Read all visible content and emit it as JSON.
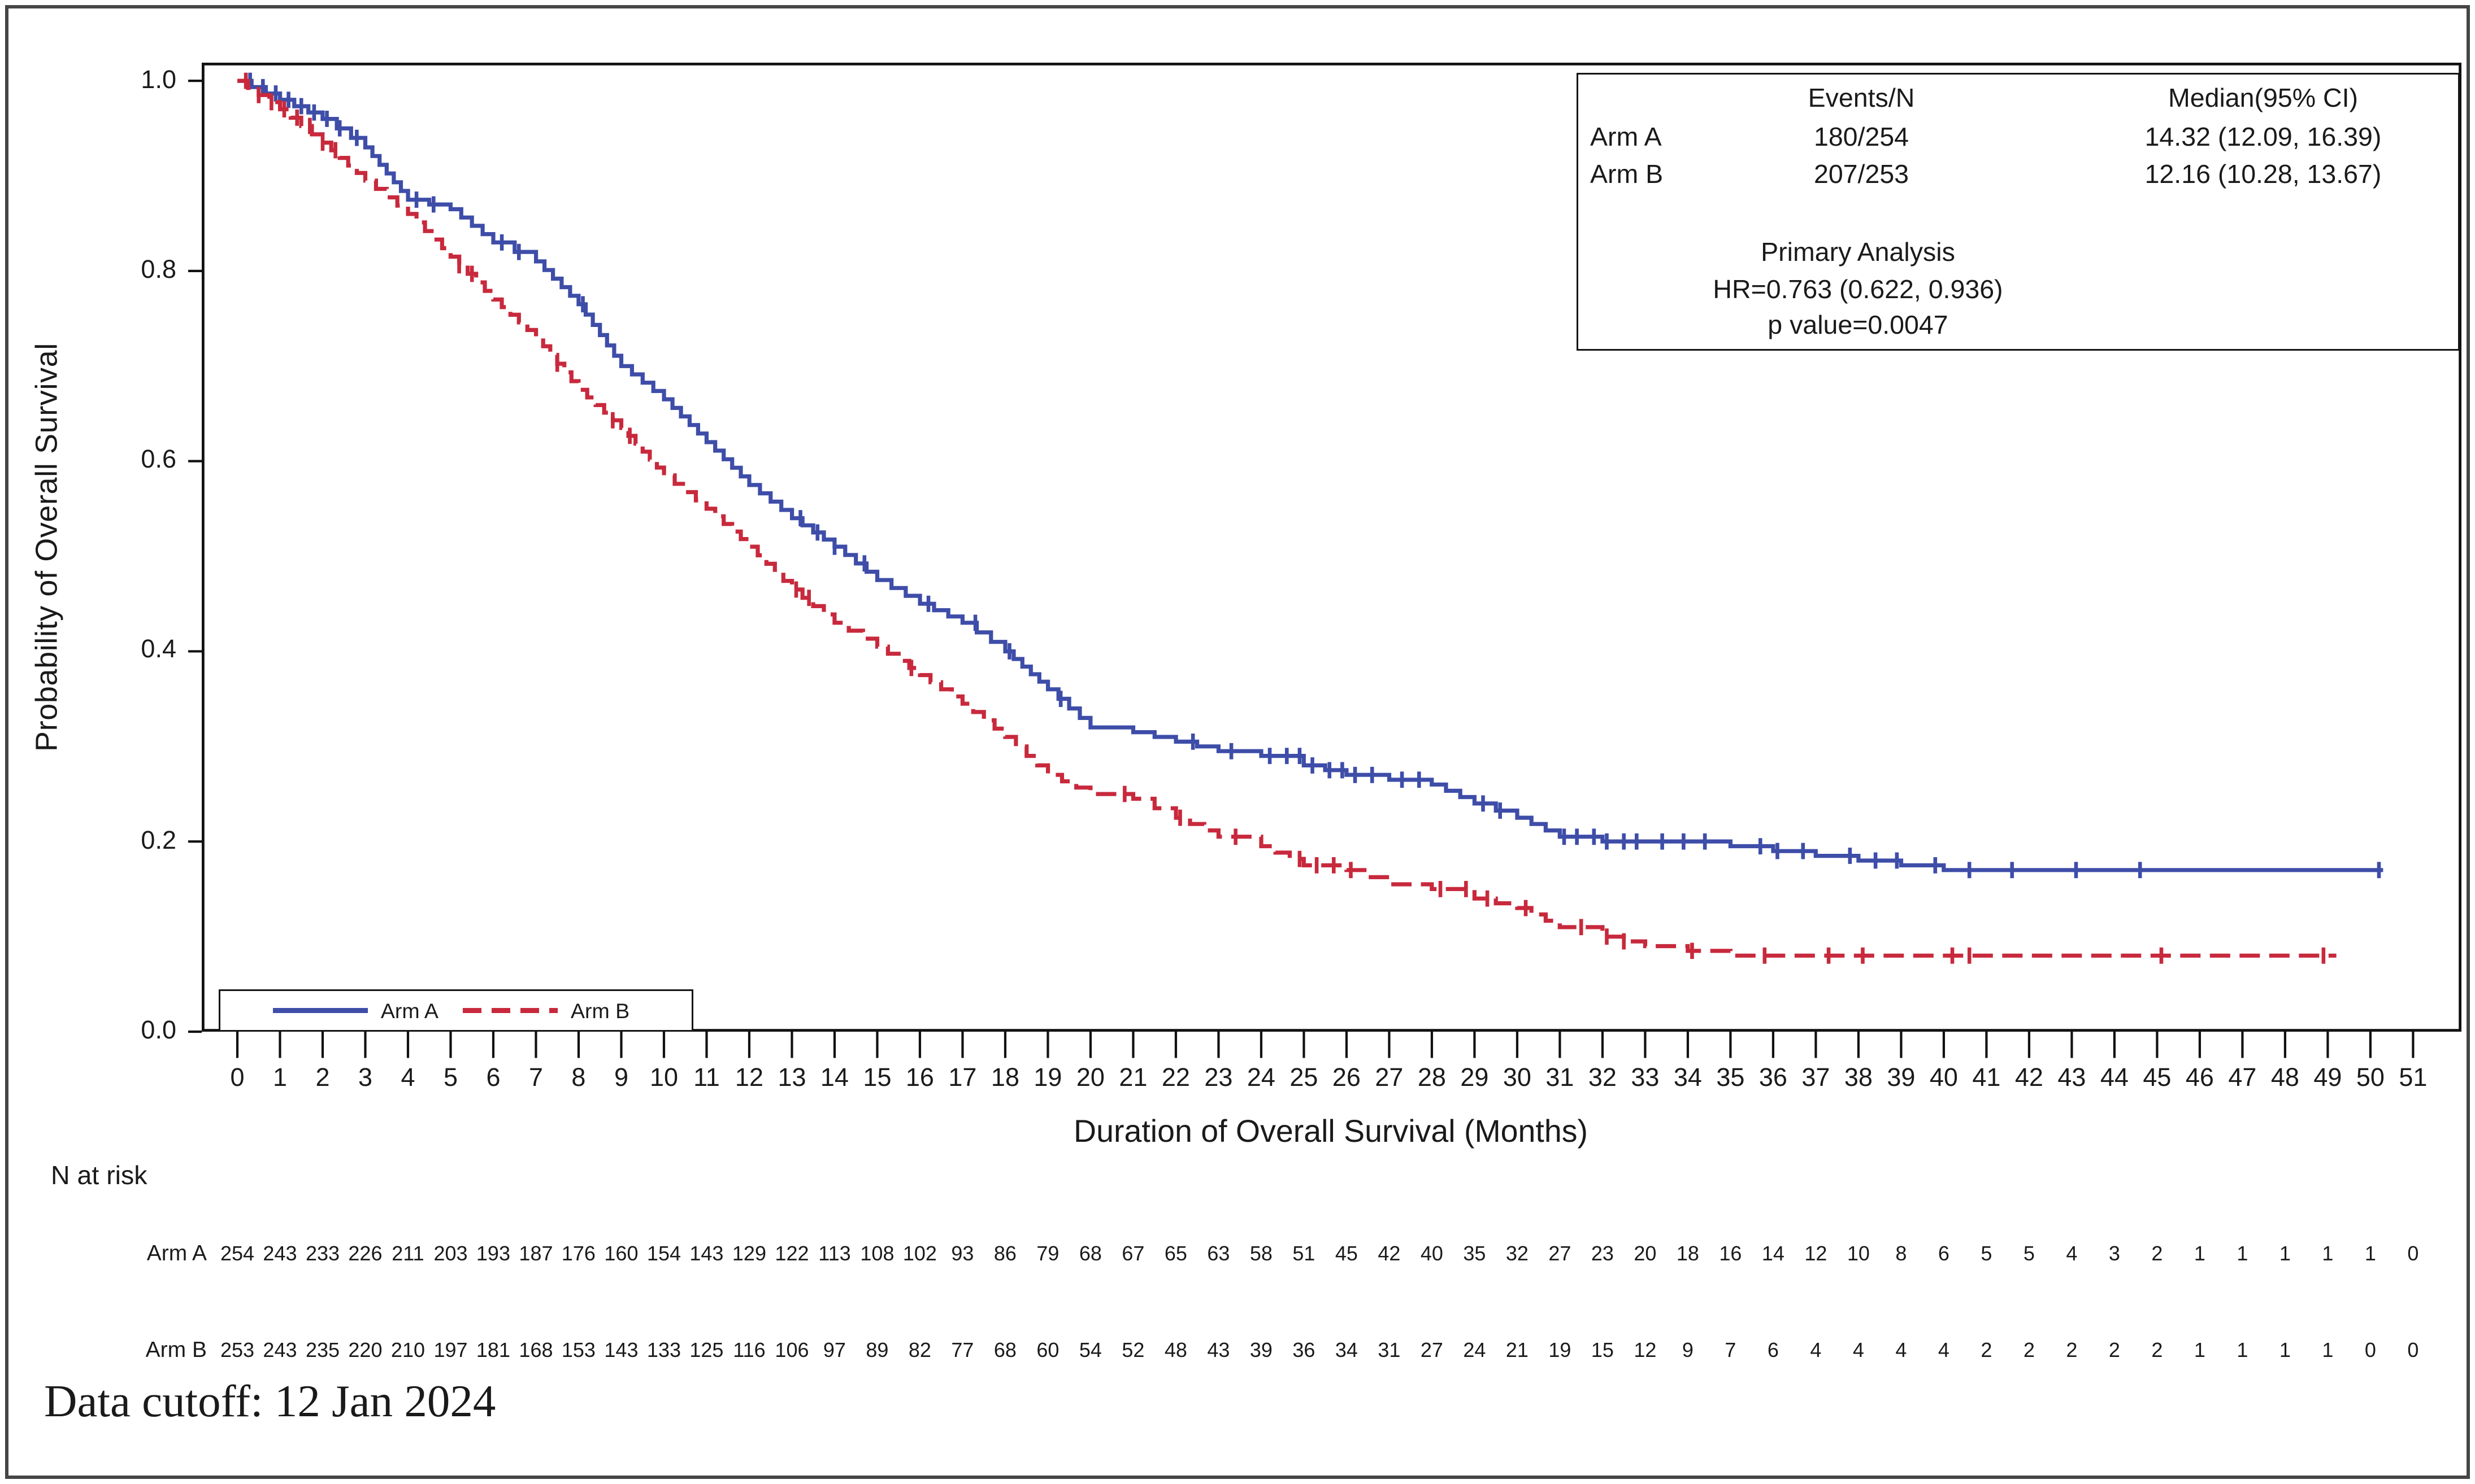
{
  "figure": {
    "y_axis_title": "Probability of Overall Survival",
    "x_axis_title": "Duration of Overall Survival (Months)",
    "n_at_risk_title": "N at risk",
    "footnote": "Data cutoff: 12 Jan 2024"
  },
  "stats_box": {
    "col_headers": [
      "Events/N",
      "Median(95% CI)"
    ],
    "rows": [
      {
        "label": "Arm A",
        "events_n": "180/254",
        "median_ci": "14.32 (12.09, 16.39)"
      },
      {
        "label": "Arm B",
        "events_n": "207/253",
        "median_ci": "12.16 (10.28, 13.67)"
      }
    ],
    "analysis_title": "Primary Analysis",
    "hr_line": "HR=0.763 (0.622, 0.936)",
    "p_line": "p value=0.0047"
  },
  "legend": {
    "items": [
      {
        "label": "Arm A",
        "color": "#3e4da8",
        "line_style": "solid"
      },
      {
        "label": "Arm B",
        "color": "#c8293c",
        "line_style": "dashed"
      }
    ]
  },
  "axes": {
    "y_ticks": [
      "1.0",
      "0.8",
      "0.6",
      "0.4",
      "0.2",
      "0.0"
    ],
    "x_ticks": [
      "0",
      "1",
      "2",
      "3",
      "4",
      "5",
      "6",
      "7",
      "8",
      "9",
      "10",
      "11",
      "12",
      "13",
      "14",
      "15",
      "16",
      "17",
      "18",
      "19",
      "20",
      "21",
      "22",
      "23",
      "24",
      "25",
      "26",
      "27",
      "28",
      "29",
      "30",
      "31",
      "32",
      "33",
      "34",
      "35",
      "36",
      "37",
      "38",
      "39",
      "40",
      "41",
      "42",
      "43",
      "44",
      "45",
      "46",
      "47",
      "48",
      "49",
      "50",
      "51"
    ]
  },
  "n_at_risk": {
    "rows": [
      {
        "label": "Arm A",
        "counts": [
          254,
          243,
          233,
          226,
          211,
          203,
          193,
          187,
          176,
          160,
          154,
          143,
          129,
          122,
          113,
          108,
          102,
          93,
          86,
          79,
          68,
          67,
          65,
          63,
          58,
          51,
          45,
          42,
          40,
          35,
          32,
          27,
          23,
          20,
          18,
          16,
          14,
          12,
          10,
          8,
          6,
          5,
          5,
          4,
          3,
          2,
          1,
          1,
          1,
          1,
          1,
          0
        ]
      },
      {
        "label": "Arm B",
        "counts": [
          253,
          243,
          235,
          220,
          210,
          197,
          181,
          168,
          153,
          143,
          133,
          125,
          116,
          106,
          97,
          89,
          82,
          77,
          68,
          60,
          54,
          52,
          48,
          43,
          39,
          36,
          34,
          31,
          27,
          24,
          21,
          19,
          15,
          12,
          9,
          7,
          6,
          4,
          4,
          4,
          4,
          2,
          2,
          2,
          2,
          2,
          1,
          1,
          1,
          1,
          0,
          0
        ]
      }
    ]
  },
  "chart_data": {
    "type": "line",
    "subtype": "kaplan-meier-step",
    "title": "",
    "xlabel": "Duration of Overall Survival (Months)",
    "ylabel": "Probability of Overall Survival",
    "xlim": [
      0,
      51
    ],
    "ylim": [
      0.0,
      1.0
    ],
    "grid": false,
    "legend_position": "inside-bottom-left",
    "x_months": [
      0,
      1,
      2,
      3,
      4,
      5,
      6,
      7,
      8,
      9,
      10,
      11,
      12,
      13,
      14,
      15,
      16,
      17,
      18,
      19,
      20,
      21,
      22,
      23,
      24,
      25,
      26,
      27,
      28,
      29,
      30,
      31,
      32,
      33,
      34,
      35,
      36,
      37,
      38,
      39,
      40,
      41,
      42,
      43,
      44,
      45,
      46,
      47,
      48,
      49,
      50,
      51
    ],
    "series": [
      {
        "name": "Arm A",
        "color": "#3e4da8",
        "line_style": "solid",
        "end_month": 50.3,
        "survival_by_month": [
          1.0,
          0.98,
          0.96,
          0.93,
          0.875,
          0.865,
          0.83,
          0.81,
          0.765,
          0.7,
          0.665,
          0.62,
          0.575,
          0.54,
          0.51,
          0.475,
          0.45,
          0.43,
          0.4,
          0.36,
          0.32,
          0.315,
          0.305,
          0.295,
          0.29,
          0.28,
          0.27,
          0.265,
          0.26,
          0.24,
          0.225,
          0.205,
          0.2,
          0.2,
          0.2,
          0.195,
          0.19,
          0.185,
          0.18,
          0.175,
          0.17,
          0.17,
          0.17,
          0.17,
          0.17,
          0.17,
          0.17,
          0.17,
          0.17,
          0.17,
          0.17,
          0.17
        ],
        "censor_months": [
          0.3,
          0.6,
          0.9,
          1.2,
          1.5,
          1.8,
          2.1,
          2.4,
          2.8,
          4.2,
          4.6,
          6.2,
          6.6,
          8.1,
          13.2,
          13.6,
          14.0,
          14.7,
          16.2,
          17.3,
          18.1,
          19.3,
          22.4,
          23.3,
          24.2,
          24.6,
          24.9,
          25.2,
          25.6,
          25.9,
          26.2,
          26.6,
          27.3,
          27.7,
          29.2,
          29.6,
          31.1,
          31.4,
          31.8,
          32.1,
          32.5,
          32.8,
          33.4,
          33.9,
          34.4,
          35.7,
          36.1,
          36.7,
          37.8,
          38.4,
          38.9,
          39.8,
          40.6,
          41.6,
          43.1,
          44.6,
          50.2
        ]
      },
      {
        "name": "Arm B",
        "color": "#c8293c",
        "line_style": "dashed",
        "end_month": 49.2,
        "survival_by_month": [
          1.0,
          0.97,
          0.935,
          0.895,
          0.86,
          0.815,
          0.77,
          0.73,
          0.675,
          0.635,
          0.585,
          0.55,
          0.51,
          0.465,
          0.43,
          0.405,
          0.375,
          0.345,
          0.31,
          0.27,
          0.25,
          0.245,
          0.225,
          0.205,
          0.195,
          0.175,
          0.17,
          0.155,
          0.15,
          0.14,
          0.13,
          0.11,
          0.1,
          0.09,
          0.085,
          0.08,
          0.08,
          0.08,
          0.08,
          0.08,
          0.08,
          0.08,
          0.08,
          0.08,
          0.08,
          0.08,
          0.08,
          0.08,
          0.08,
          0.08,
          0.08,
          0.08
        ],
        "censor_months": [
          0.2,
          0.5,
          0.8,
          1.1,
          1.4,
          1.7,
          2.0,
          2.3,
          5.2,
          5.5,
          7.5,
          8.8,
          9.2,
          13.1,
          13.4,
          15.8,
          20.8,
          22.1,
          23.4,
          24.9,
          25.3,
          25.7,
          26.1,
          28.2,
          28.8,
          29.3,
          30.2,
          31.5,
          32.1,
          32.5,
          34.1,
          35.8,
          37.3,
          38.1,
          40.2,
          40.6,
          45.1,
          48.9
        ]
      }
    ]
  }
}
